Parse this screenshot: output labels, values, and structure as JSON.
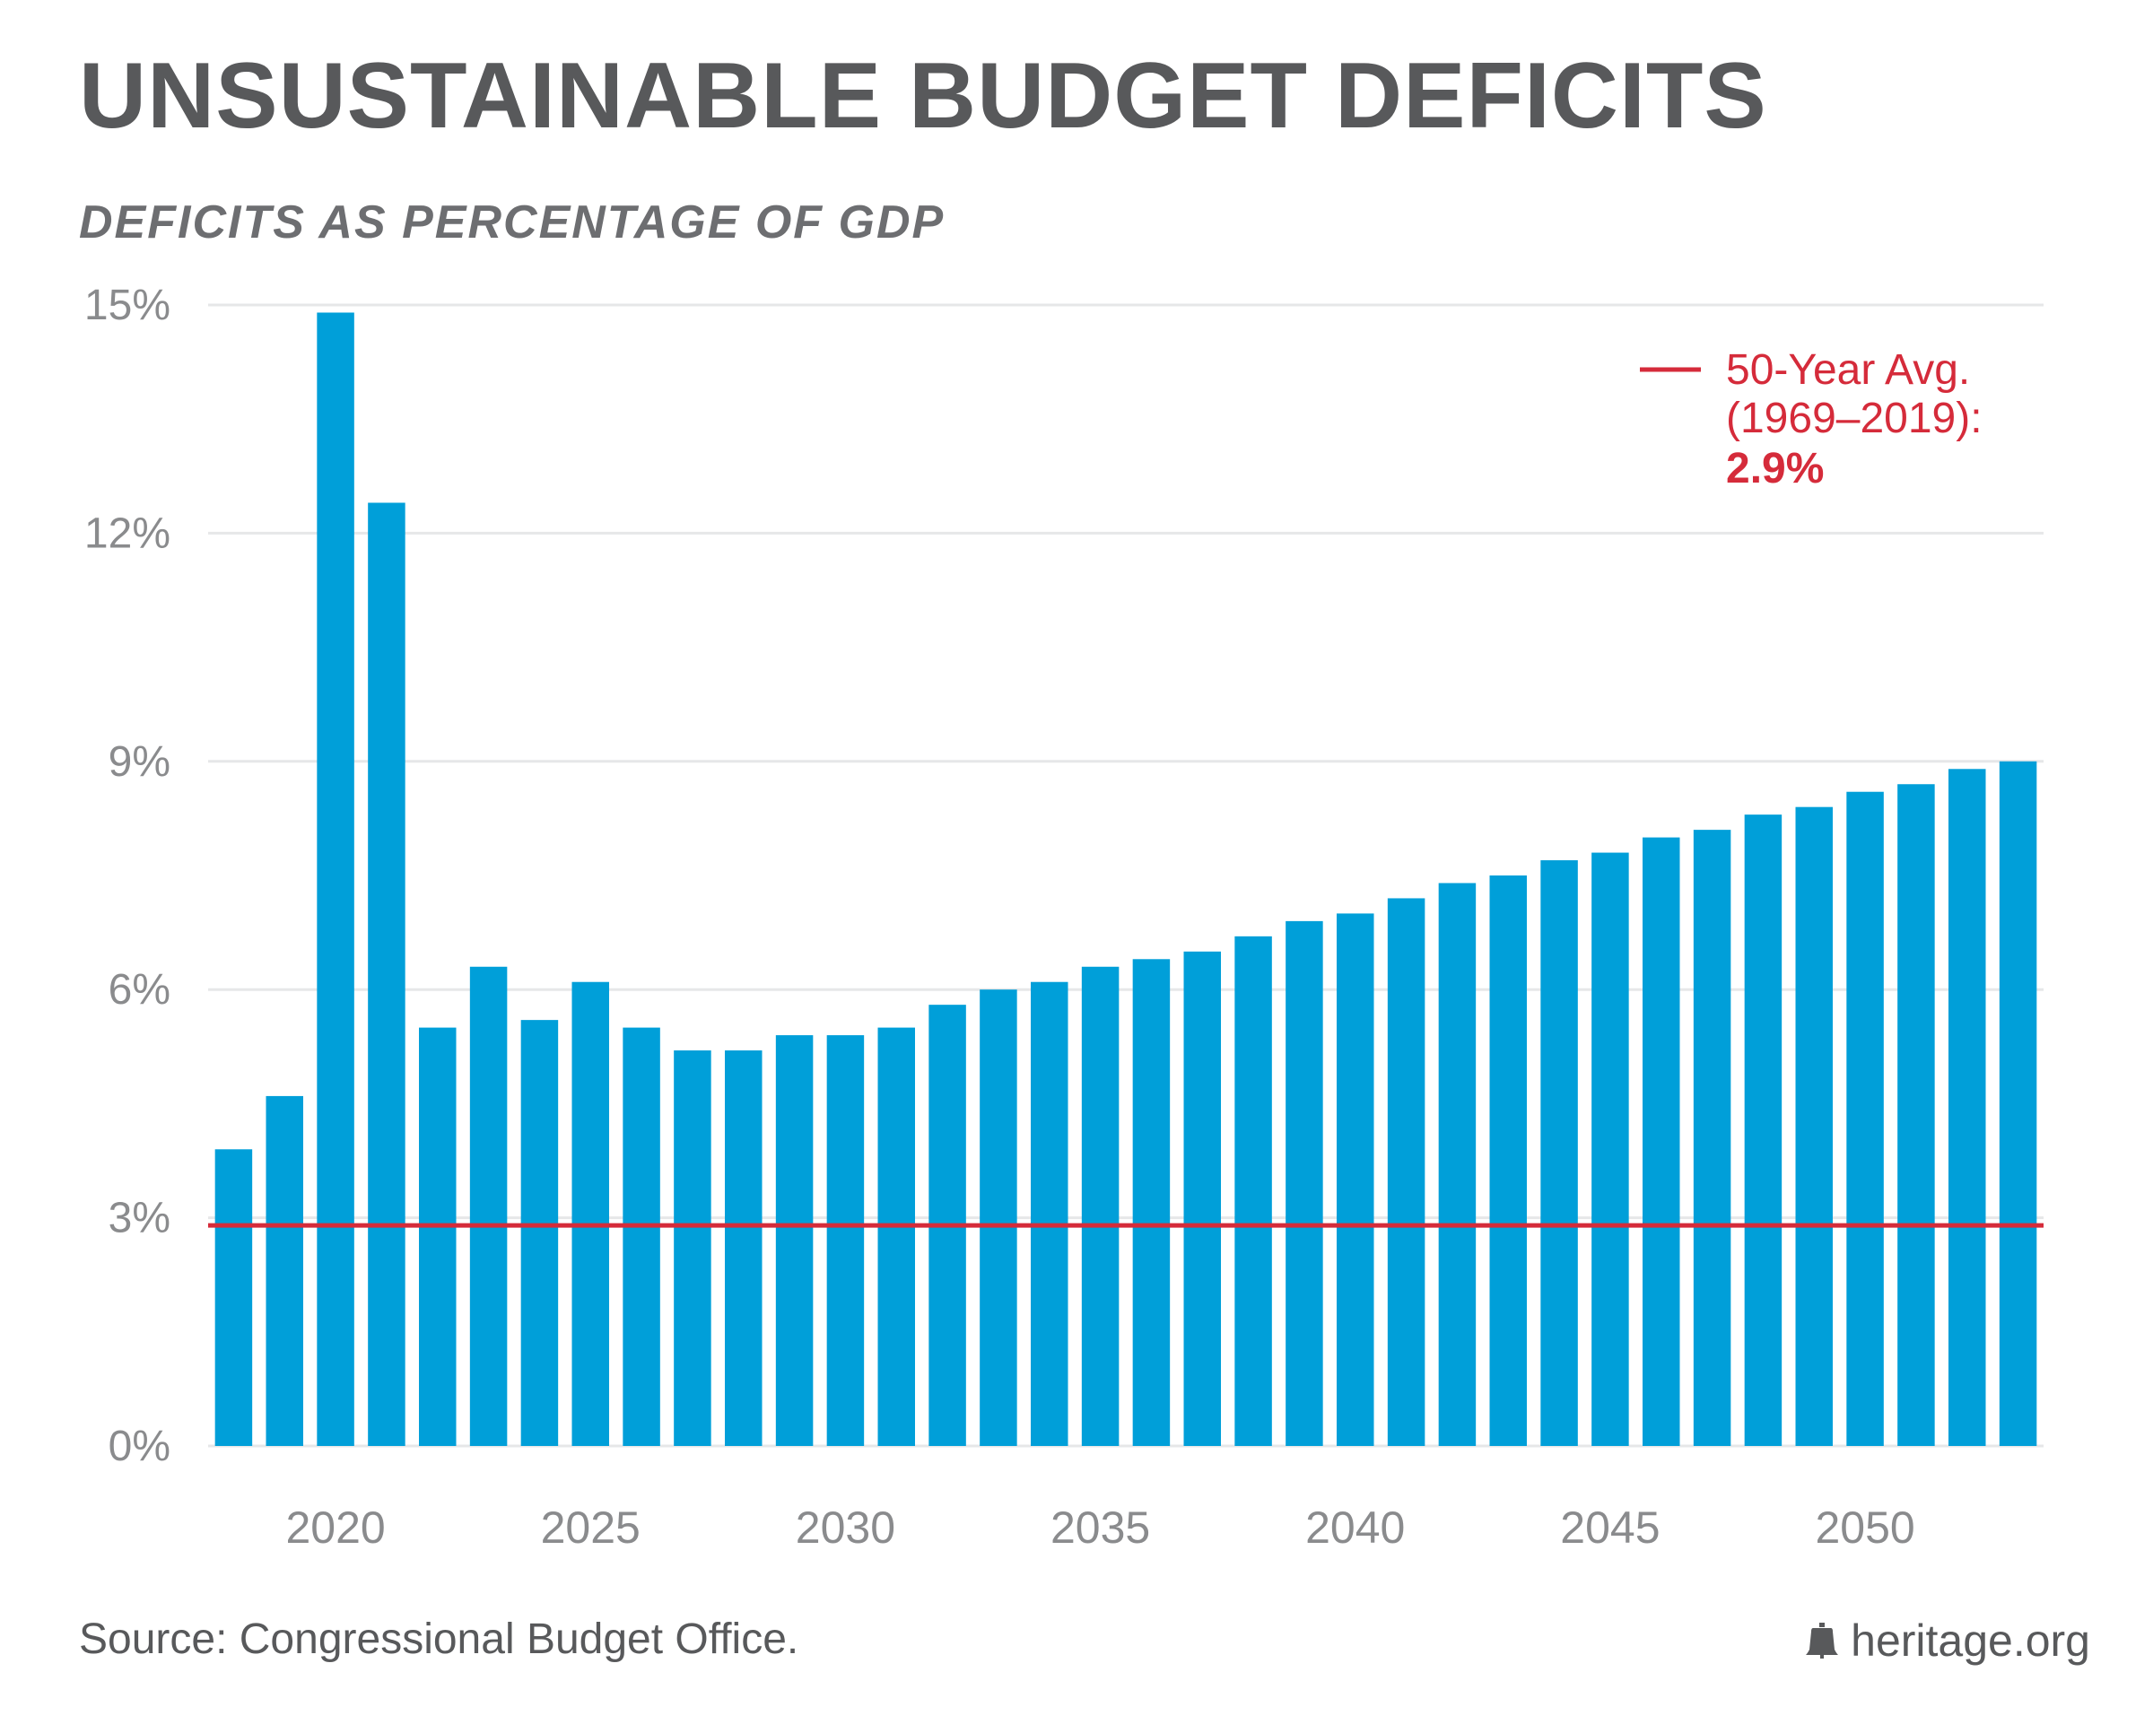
{
  "header": {
    "title": "UNSUSTAINABLE BUDGET DEFICITS",
    "subtitle": "DEFICITS AS PERCENTAGE OF GDP"
  },
  "footer": {
    "source": "Source: Congressional Budget Office.",
    "brand": "heritage.org",
    "brand_icon": "liberty-bell-icon"
  },
  "colors": {
    "bar": "#009fd9",
    "reference_line": "#d52b3a",
    "gridline": "#e6e7e8",
    "axis_text": "#8a8b8d",
    "title": "#58595b"
  },
  "chart_data": {
    "type": "bar",
    "title": "UNSUSTAINABLE BUDGET DEFICITS",
    "subtitle": "DEFICITS AS PERCENTAGE OF GDP",
    "xlabel": "",
    "ylabel": "",
    "categories": [
      2018,
      2019,
      2020,
      2021,
      2022,
      2023,
      2024,
      2025,
      2026,
      2027,
      2028,
      2029,
      2030,
      2031,
      2032,
      2033,
      2034,
      2035,
      2036,
      2037,
      2038,
      2039,
      2040,
      2041,
      2042,
      2043,
      2044,
      2045,
      2046,
      2047,
      2048,
      2049,
      2050,
      2051,
      2052,
      2053
    ],
    "values": [
      3.9,
      4.6,
      14.9,
      12.4,
      5.5,
      6.3,
      5.6,
      6.1,
      5.5,
      5.2,
      5.2,
      5.4,
      5.4,
      5.5,
      5.8,
      6.0,
      6.1,
      6.3,
      6.4,
      6.5,
      6.7,
      6.9,
      7.0,
      7.2,
      7.4,
      7.5,
      7.7,
      7.8,
      8.0,
      8.1,
      8.3,
      8.4,
      8.6,
      8.7,
      8.9,
      9.0
    ],
    "ylim": [
      0,
      15
    ],
    "yticks": [
      0,
      3,
      6,
      9,
      12,
      15
    ],
    "ytick_labels": [
      "0%",
      "3%",
      "6%",
      "9%",
      "12%",
      "15%"
    ],
    "xticks": [
      2020,
      2025,
      2030,
      2035,
      2040,
      2045,
      2050
    ],
    "xtick_labels": [
      "2020",
      "2025",
      "2030",
      "2035",
      "2040",
      "2045",
      "2050"
    ],
    "grid": true,
    "reference_line": {
      "value": 2.9,
      "label_line1": "50-Year Avg.",
      "label_line2": "(1969–2019):",
      "label_value": "2.9%"
    },
    "legend_position": "top-right"
  }
}
